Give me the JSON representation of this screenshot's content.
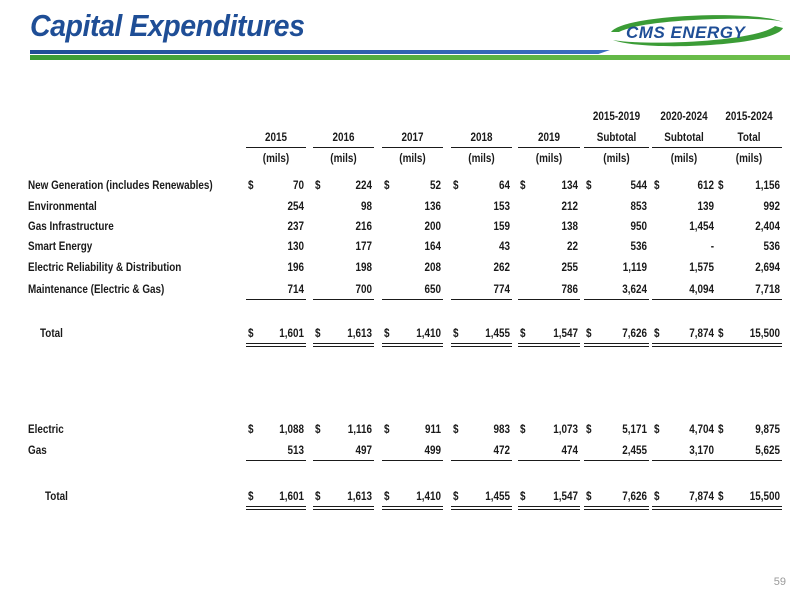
{
  "title": "Capital Expenditures",
  "logo_text": "CMS ENERGY",
  "page_number": "59",
  "header_top": [
    "",
    "",
    "",
    "",
    "",
    "2015-2019",
    "2020-2024",
    "2015-2024"
  ],
  "header_mid": [
    "2015",
    "2016",
    "2017",
    "2018",
    "2019",
    "Subtotal",
    "Subtotal",
    "Total"
  ],
  "header_unit": [
    "(mils)",
    "(mils)",
    "(mils)",
    "(mils)",
    "(mils)",
    "(mils)",
    "(mils)",
    "(mils)"
  ],
  "currency_symbol": "$",
  "section1": [
    {
      "label": "New Generation (includes Renewables)",
      "dollar": true,
      "values": [
        "70",
        "224",
        "52",
        "64",
        "134",
        "544",
        "612",
        "1,156"
      ]
    },
    {
      "label": "Environmental",
      "dollar": false,
      "values": [
        "254",
        "98",
        "136",
        "153",
        "212",
        "853",
        "139",
        "992"
      ]
    },
    {
      "label": "Gas Infrastructure",
      "dollar": false,
      "values": [
        "237",
        "216",
        "200",
        "159",
        "138",
        "950",
        "1,454",
        "2,404"
      ]
    },
    {
      "label": "Smart Energy",
      "dollar": false,
      "values": [
        "130",
        "177",
        "164",
        "43",
        "22",
        "536",
        "-",
        "536"
      ]
    },
    {
      "label": "Electric Reliability & Distribution",
      "dollar": false,
      "values": [
        "196",
        "198",
        "208",
        "262",
        "255",
        "1,119",
        "1,575",
        "2,694"
      ]
    },
    {
      "label": "Maintenance (Electric & Gas)",
      "dollar": false,
      "values": [
        "714",
        "700",
        "650",
        "774",
        "786",
        "3,624",
        "4,094",
        "7,718"
      ]
    }
  ],
  "section1_total": {
    "label": "Total",
    "values": [
      "1,601",
      "1,613",
      "1,410",
      "1,455",
      "1,547",
      "7,626",
      "7,874",
      "15,500"
    ]
  },
  "section2": [
    {
      "label": "Electric",
      "dollar": true,
      "values": [
        "1,088",
        "1,116",
        "911",
        "983",
        "1,073",
        "5,171",
        "4,704",
        "9,875"
      ]
    },
    {
      "label": "Gas",
      "dollar": false,
      "values": [
        "513",
        "497",
        "499",
        "472",
        "474",
        "2,455",
        "3,170",
        "5,625"
      ]
    }
  ],
  "section2_total": {
    "label": "Total",
    "values": [
      "1,601",
      "1,613",
      "1,410",
      "1,455",
      "1,547",
      "7,626",
      "7,874",
      "15,500"
    ]
  }
}
